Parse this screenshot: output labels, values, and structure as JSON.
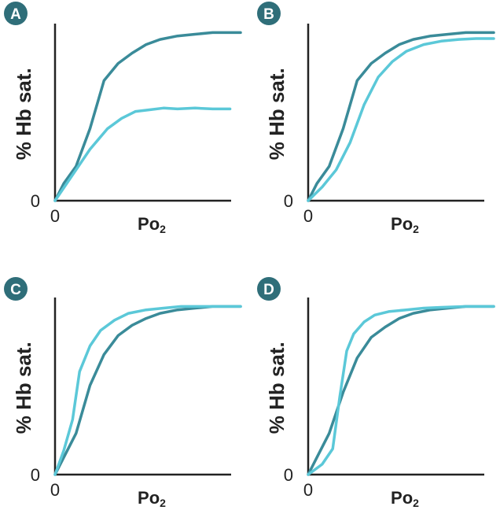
{
  "colors": {
    "dark_teal": "#3a8b99",
    "light_teal": "#5bc8d8",
    "badge": "#2f6e79",
    "axis": "#222222"
  },
  "chart_data": [
    {
      "type": "line",
      "panel": "A",
      "xlabel": "Po",
      "xlabel_subscript": "2",
      "ylabel": "% Hb sat.",
      "x_tick_label": "0",
      "y_tick_label": "0",
      "xlim": [
        0,
        100
      ],
      "ylim": [
        0,
        100
      ],
      "grid": false,
      "series": [
        {
          "color": "#3a8b99",
          "x": [
            0,
            5,
            12,
            20,
            28,
            36,
            44,
            52,
            60,
            70,
            80,
            90,
            100,
            106
          ],
          "y": [
            0,
            10,
            20,
            42,
            70,
            80,
            86,
            91,
            94,
            96,
            97,
            98,
            98,
            98
          ]
        },
        {
          "color": "#5bc8d8",
          "x": [
            0,
            10,
            20,
            30,
            38,
            46,
            54,
            62,
            70,
            80,
            90,
            100
          ],
          "y": [
            0,
            15,
            30,
            42,
            48,
            52,
            53,
            54,
            53.5,
            54,
            53.5,
            53.5
          ]
        }
      ]
    },
    {
      "type": "line",
      "panel": "B",
      "xlabel": "Po",
      "xlabel_subscript": "2",
      "ylabel": "% Hb sat.",
      "x_tick_label": "0",
      "y_tick_label": "0",
      "xlim": [
        0,
        100
      ],
      "ylim": [
        0,
        100
      ],
      "grid": false,
      "series": [
        {
          "color": "#3a8b99",
          "x": [
            0,
            5,
            12,
            20,
            28,
            36,
            44,
            52,
            60,
            70,
            80,
            90,
            100,
            106
          ],
          "y": [
            0,
            10,
            20,
            42,
            70,
            80,
            86,
            91,
            94,
            96,
            97,
            98,
            98,
            98
          ]
        },
        {
          "color": "#5bc8d8",
          "x": [
            0,
            8,
            16,
            24,
            32,
            40,
            48,
            56,
            66,
            76,
            86,
            96,
            106
          ],
          "y": [
            0,
            8,
            18,
            34,
            56,
            72,
            81,
            87,
            91,
            93,
            94,
            94.5,
            94.5
          ]
        }
      ]
    },
    {
      "type": "line",
      "panel": "C",
      "xlabel": "Po",
      "xlabel_subscript": "2",
      "ylabel": "% Hb sat.",
      "x_tick_label": "0",
      "y_tick_label": "0",
      "xlim": [
        0,
        100
      ],
      "ylim": [
        0,
        100
      ],
      "grid": false,
      "series": [
        {
          "color": "#3a8b99",
          "x": [
            0,
            5,
            12,
            20,
            28,
            36,
            44,
            52,
            60,
            70,
            80,
            90,
            100,
            106
          ],
          "y": [
            0,
            10,
            24,
            52,
            70,
            81,
            87,
            91,
            94,
            96,
            97,
            98,
            98,
            98
          ]
        },
        {
          "color": "#5bc8d8",
          "x": [
            0,
            5,
            10,
            14,
            20,
            26,
            34,
            42,
            52,
            62,
            72,
            82,
            92,
            106
          ],
          "y": [
            0,
            14,
            32,
            60,
            75,
            84,
            90,
            94,
            96,
            97,
            98,
            98,
            98,
            98
          ]
        }
      ]
    },
    {
      "type": "line",
      "panel": "D",
      "xlabel": "Po",
      "xlabel_subscript": "2",
      "ylabel": "% Hb sat.",
      "x_tick_label": "0",
      "y_tick_label": "0",
      "xlim": [
        0,
        100
      ],
      "ylim": [
        0,
        100
      ],
      "grid": false,
      "series": [
        {
          "color": "#3a8b99",
          "x": [
            0,
            5,
            12,
            20,
            28,
            36,
            44,
            52,
            60,
            70,
            80,
            90,
            100,
            106
          ],
          "y": [
            0,
            10,
            24,
            48,
            68,
            80,
            86,
            91,
            94,
            96,
            97,
            98,
            98,
            98
          ]
        },
        {
          "color": "#5bc8d8",
          "x": [
            0,
            8,
            14,
            18,
            22,
            26,
            32,
            38,
            46,
            56,
            66,
            76,
            90,
            106
          ],
          "y": [
            0,
            6,
            15,
            45,
            72,
            82,
            89,
            93,
            95,
            96,
            97,
            97.5,
            98,
            98
          ]
        }
      ]
    }
  ]
}
